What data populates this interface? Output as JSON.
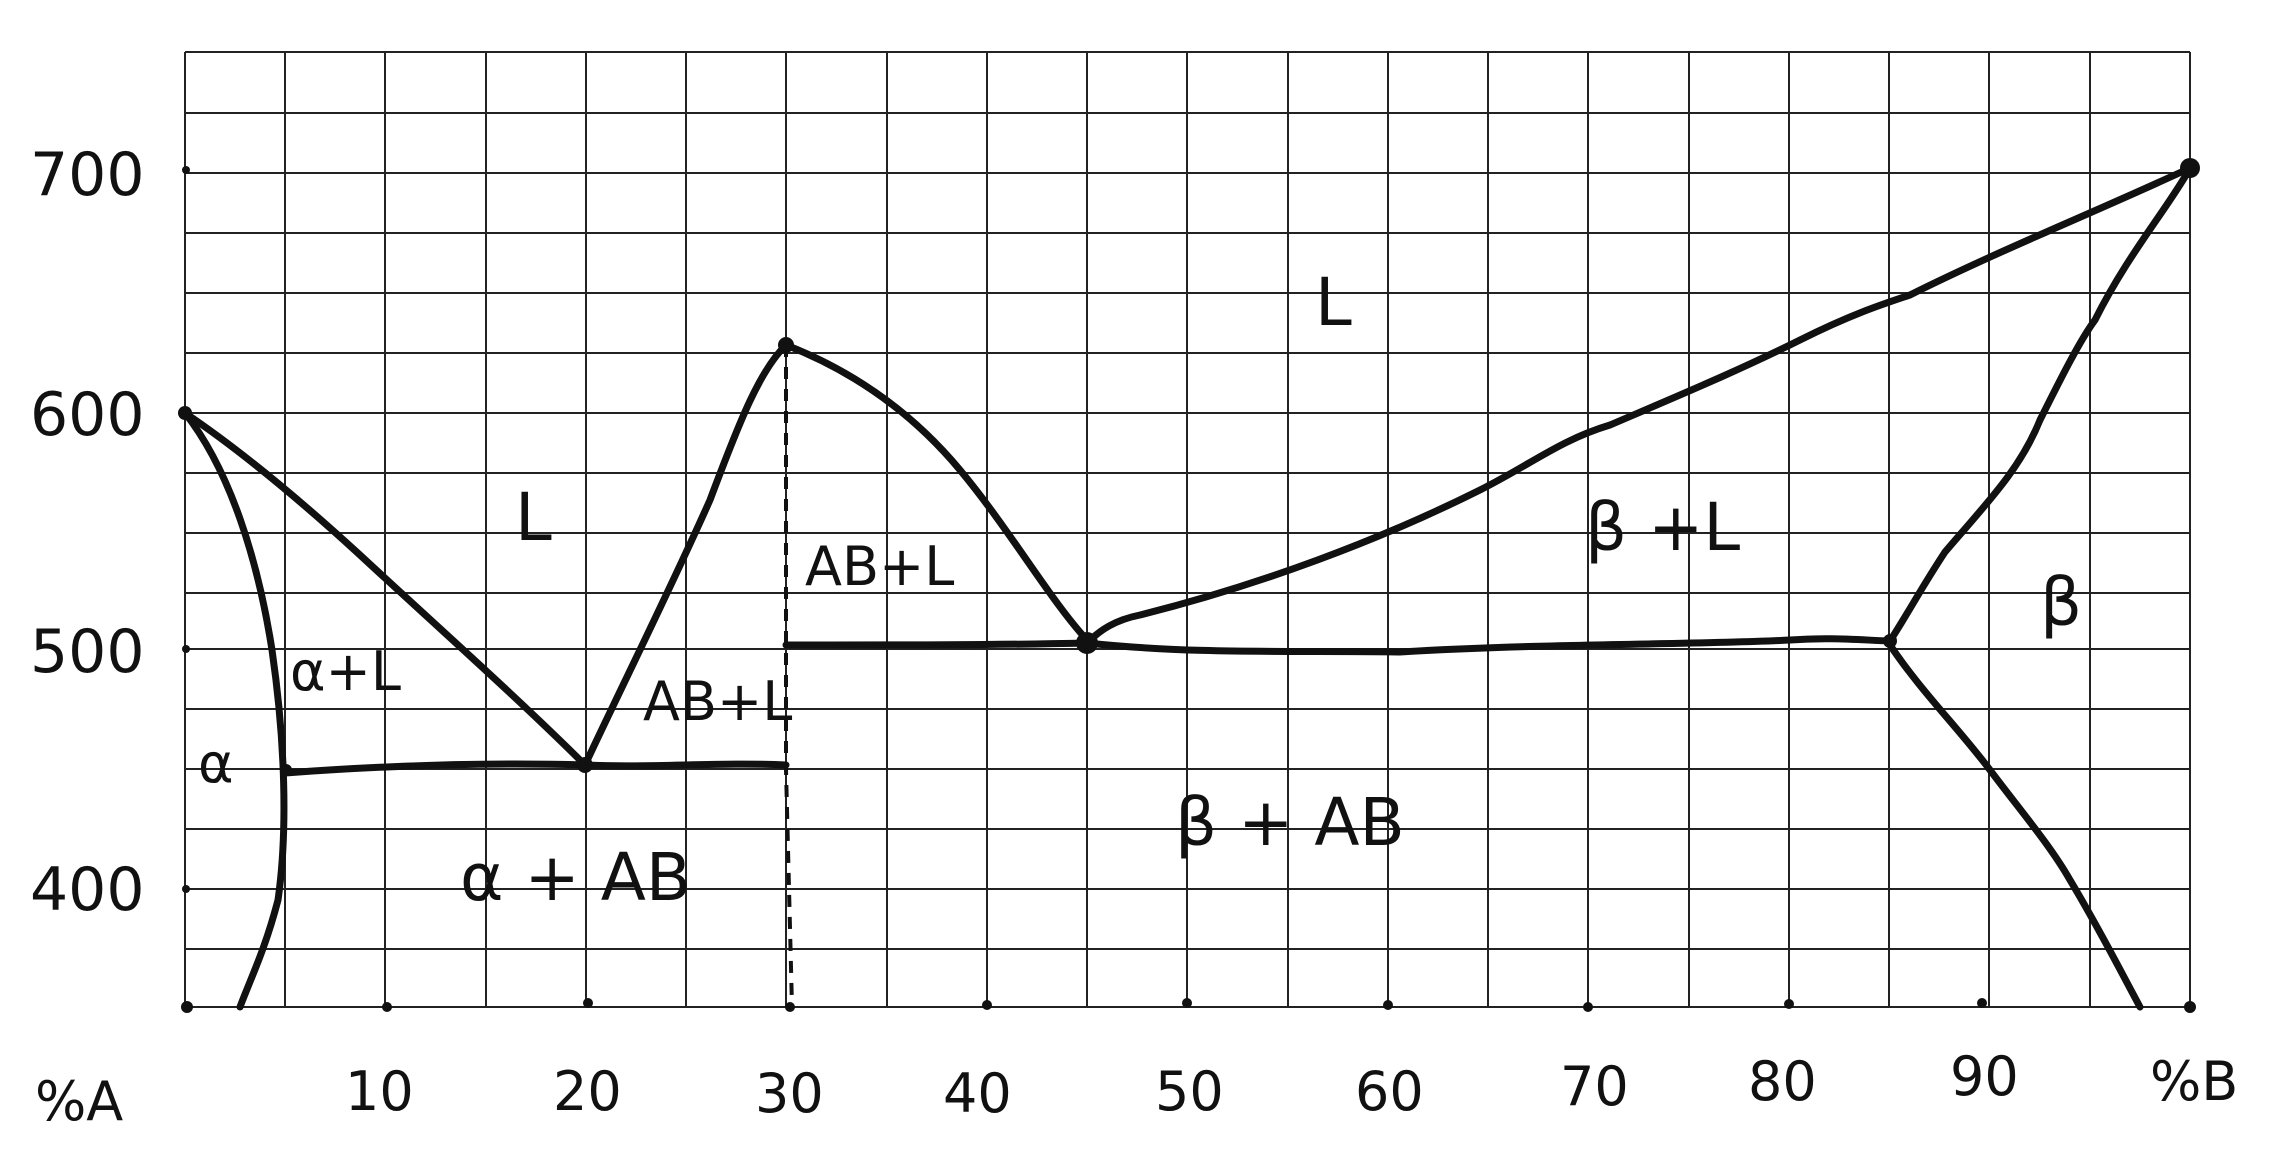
{
  "axes": {
    "x_left_label": "%A",
    "x_right_label": "%B",
    "x_tick_labels": [
      "10",
      "20",
      "30",
      "40",
      "50",
      "60",
      "70",
      "80",
      "90"
    ],
    "y_tick_labels": [
      "700",
      "600",
      "500",
      "400"
    ]
  },
  "regions": {
    "liquid_top": "L",
    "liquid_left": "L",
    "alpha_plus_liquid": "α+L",
    "alpha": "α",
    "alpha_plus_ab": "α + AB",
    "ab_plus_liquid_left": "AB+L",
    "ab_plus_liquid_right": "AB+L",
    "beta_plus_liquid": "β +L",
    "beta": "β",
    "beta_plus_ab": "β + AB"
  },
  "colors": {
    "ink": "#111111",
    "grid": "#222222",
    "background": "#ffffff"
  }
}
